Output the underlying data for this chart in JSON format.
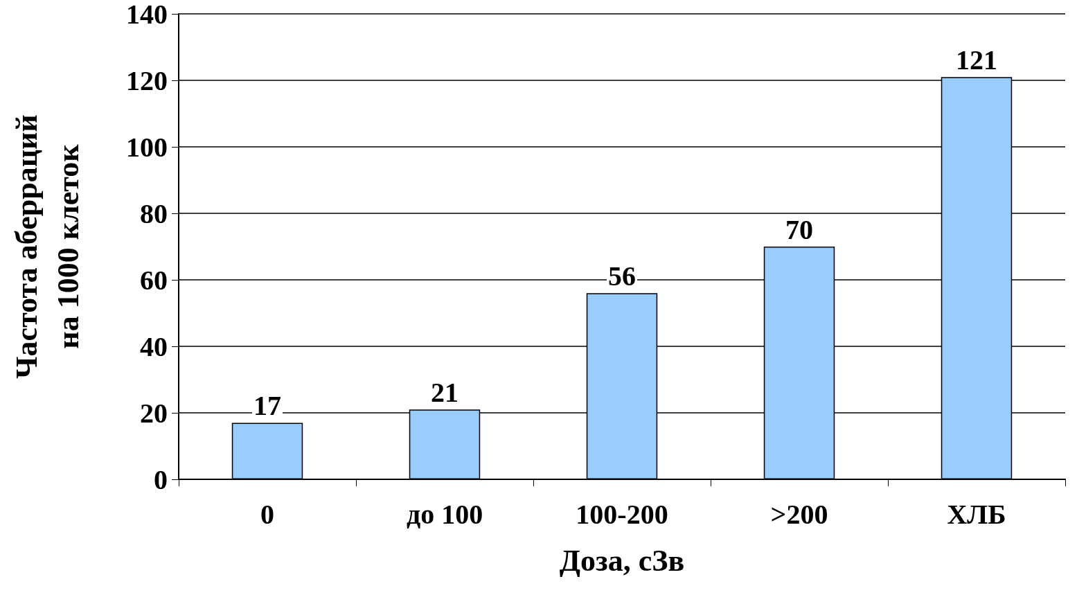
{
  "chart_data": {
    "type": "bar",
    "categories": [
      "0",
      "до 100",
      "100-200",
      ">200",
      "ХЛБ"
    ],
    "values": [
      17,
      21,
      56,
      70,
      121
    ],
    "color": "#99ccff",
    "xlabel": "Доза, сЗв",
    "ylabel": "Частота аберраций на 1000 клеток",
    "ylim": [
      0,
      140
    ],
    "yticks": [
      0,
      20,
      40,
      60,
      80,
      100,
      120,
      140
    ],
    "grid": "y",
    "data_labels": true
  }
}
